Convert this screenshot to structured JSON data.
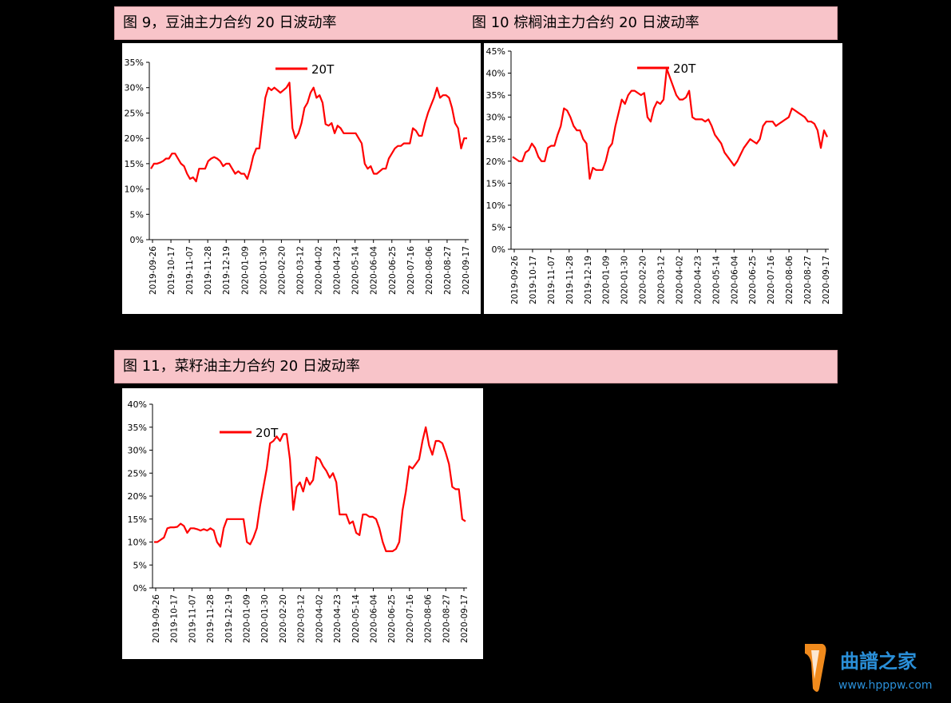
{
  "titles": {
    "fig9": "图 9，豆油主力合约 20 日波动率",
    "fig10": "图 10 棕榈油主力合约 20 日波动率",
    "fig11": "图 11，菜籽油主力合约 20 日波动率"
  },
  "watermark": {
    "name": "曲譜之家",
    "url": "www.hpppw.com"
  },
  "chart_data": [
    {
      "id": "fig9",
      "type": "line",
      "title": "图 9，豆油主力合约 20 日波动率",
      "ylim": [
        0,
        35
      ],
      "yticks": [
        0,
        5,
        10,
        15,
        20,
        25,
        30,
        35
      ],
      "ytick_labels": [
        "0%",
        "5%",
        "10%",
        "15%",
        "20%",
        "25%",
        "30%",
        "35%"
      ],
      "xtick_labels": [
        "2019-09-26",
        "2019-10-17",
        "2019-11-07",
        "2019-11-28",
        "2019-12-19",
        "2020-01-09",
        "2020-01-30",
        "2020-02-20",
        "2020-03-12",
        "2020-04-02",
        "2020-04-23",
        "2020-05-14",
        "2020-06-04",
        "2020-06-25",
        "2020-07-16",
        "2020-08-06",
        "2020-08-27",
        "2020-09-17"
      ],
      "legend_position": "top-center",
      "grid": false,
      "color": "#ff0000",
      "series": [
        {
          "name": "20T",
          "values": [
            14,
            15,
            15,
            15.2,
            15.5,
            16,
            16,
            17,
            17,
            16,
            15,
            14.5,
            13,
            12,
            12.3,
            11.5,
            14,
            14,
            14,
            15.5,
            16,
            16.3,
            16,
            15.5,
            14.5,
            15,
            15,
            14,
            13,
            13.5,
            13,
            13,
            12,
            14,
            16.5,
            18,
            18,
            23,
            28,
            30,
            29.5,
            30,
            29.5,
            29,
            29.5,
            30,
            31,
            22,
            20,
            21,
            23,
            26,
            27,
            29,
            30,
            28,
            28.5,
            27,
            22.8,
            22.5,
            23,
            21,
            22.5,
            22,
            21,
            21,
            21,
            21,
            21,
            20,
            19,
            15,
            14,
            14.5,
            13,
            13,
            13.5,
            14,
            14,
            16,
            17,
            18,
            18.5,
            18.5,
            19,
            19,
            19,
            22,
            21.5,
            20.5,
            20.5,
            23,
            25,
            26.5,
            28,
            30,
            28,
            28.5,
            28.5,
            28,
            26,
            23,
            22,
            18,
            20,
            20
          ]
        }
      ]
    },
    {
      "id": "fig10",
      "type": "line",
      "title": "图 10 棕榈油主力合约 20 日波动率",
      "ylim": [
        0,
        45
      ],
      "yticks": [
        0,
        5,
        10,
        15,
        20,
        25,
        30,
        35,
        40,
        45
      ],
      "ytick_labels": [
        "0%",
        "5%",
        "10%",
        "15%",
        "20%",
        "25%",
        "30%",
        "35%",
        "40%",
        "45%"
      ],
      "xtick_labels": [
        "2019-09-26",
        "2019-10-17",
        "2019-11-07",
        "2019-11-28",
        "2019-12-19",
        "2020-01-09",
        "2020-01-30",
        "2020-02-20",
        "2020-03-12",
        "2020-04-02",
        "2020-04-23",
        "2020-05-14",
        "2020-06-04",
        "2020-06-25",
        "2020-07-16",
        "2020-08-06",
        "2020-08-27",
        "2020-09-17"
      ],
      "legend_position": "top-center",
      "grid": false,
      "color": "#ff0000",
      "series": [
        {
          "name": "20T",
          "values": [
            21,
            20.5,
            20,
            20,
            22,
            22.5,
            24,
            23,
            21,
            20,
            20,
            23,
            23.5,
            23.5,
            26,
            28,
            32,
            31.5,
            30,
            28,
            27,
            27,
            25,
            24,
            16,
            18.5,
            18,
            18,
            18,
            20,
            23,
            24,
            28,
            31,
            34,
            33,
            35,
            36,
            36,
            35.5,
            35,
            35.5,
            30,
            29,
            32,
            33.5,
            33,
            34,
            41,
            39,
            37,
            35,
            34,
            34,
            34.5,
            36,
            30,
            29.5,
            29.5,
            29.5,
            29,
            29.5,
            28,
            26,
            25,
            24,
            22,
            21,
            20,
            19,
            20,
            21.5,
            23,
            24,
            25,
            24.5,
            24,
            25,
            28,
            29,
            29,
            29,
            28,
            28.5,
            29,
            29.5,
            30,
            32,
            31.5,
            31,
            30.5,
            30,
            29,
            29,
            28.5,
            27,
            23,
            27,
            25.5
          ]
        }
      ]
    },
    {
      "id": "fig11",
      "type": "line",
      "title": "图 11，菜籽油主力合约 20 日波动率",
      "ylim": [
        0,
        40
      ],
      "yticks": [
        0,
        5,
        10,
        15,
        20,
        25,
        30,
        35,
        40
      ],
      "ytick_labels": [
        "0%",
        "5%",
        "10%",
        "15%",
        "20%",
        "25%",
        "30%",
        "35%",
        "40%"
      ],
      "xtick_labels": [
        "2019-09-26",
        "2019-10-17",
        "2019-11-07",
        "2019-11-28",
        "2019-12-19",
        "2020-01-09",
        "2020-01-30",
        "2020-02-20",
        "2020-03-12",
        "2020-04-02",
        "2020-04-23",
        "2020-05-14",
        "2020-06-04",
        "2020-06-25",
        "2020-07-16",
        "2020-08-06",
        "2020-08-27",
        "2020-09-17"
      ],
      "legend_position": "top-left",
      "grid": false,
      "color": "#ff0000",
      "series": [
        {
          "name": "20T",
          "values": [
            10,
            10,
            10.5,
            11,
            13,
            13.2,
            13.2,
            13.3,
            14,
            13.5,
            12,
            13,
            13,
            12.8,
            12.5,
            12.8,
            12.5,
            13,
            12.5,
            10,
            9,
            13,
            15,
            15,
            15,
            15,
            15,
            15,
            10,
            9.5,
            11,
            13,
            18,
            22,
            26,
            31.5,
            32,
            33,
            32,
            33.5,
            33.5,
            28,
            17,
            22,
            23,
            21,
            24,
            22.5,
            23.5,
            28.5,
            28,
            26.5,
            25.5,
            24,
            25,
            23,
            16,
            16,
            16,
            14,
            14.5,
            12,
            11.5,
            16,
            16,
            15.5,
            15.5,
            15,
            13,
            10,
            8,
            8,
            8,
            8.5,
            10,
            17,
            21,
            26.5,
            26,
            27,
            28,
            32,
            35,
            31,
            29,
            32,
            32,
            31.5,
            29.5,
            27,
            22,
            21.5,
            21.5,
            15,
            14.5
          ]
        }
      ]
    }
  ]
}
